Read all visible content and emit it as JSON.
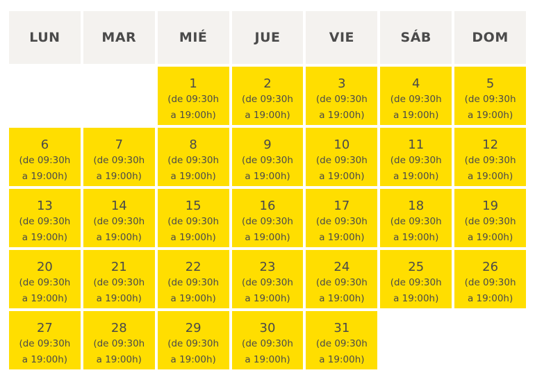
{
  "weekdays": [
    "LUN",
    "MAR",
    "MIÉ",
    "JUE",
    "VIE",
    "SÁB",
    "DOM"
  ],
  "hours_line1": "(de 09:30h",
  "hours_line2": "a 19:00h)",
  "weeks": [
    [
      null,
      null,
      "1",
      "2",
      "3",
      "4",
      "5"
    ],
    [
      "6",
      "7",
      "8",
      "9",
      "10",
      "11",
      "12"
    ],
    [
      "13",
      "14",
      "15",
      "16",
      "17",
      "18",
      "19"
    ],
    [
      "20",
      "21",
      "22",
      "23",
      "24",
      "25",
      "26"
    ],
    [
      "27",
      "28",
      "29",
      "30",
      "31",
      null,
      null
    ]
  ],
  "colors": {
    "header_bg": "#f4f2ef",
    "day_bg": "#ffde00",
    "text": "#4a4a4a"
  }
}
